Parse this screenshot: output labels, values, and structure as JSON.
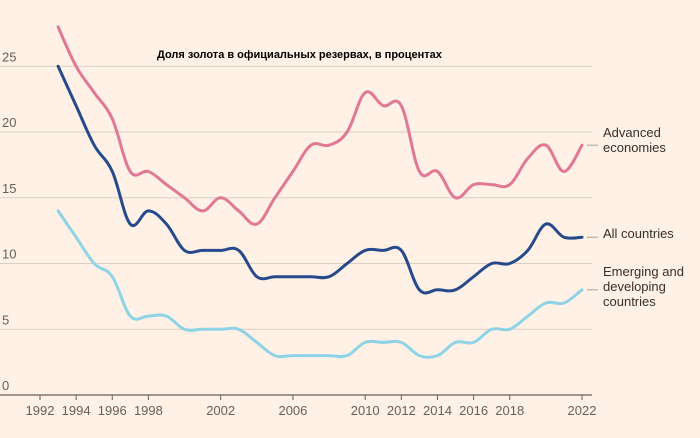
{
  "chart_data": {
    "type": "line",
    "title": "Доля золота в официальных резервах, в процентах",
    "xlabel": "",
    "ylabel": "",
    "xlim": [
      1992,
      2022
    ],
    "ylim": [
      0,
      27
    ],
    "grid": true,
    "legend_placement": "right, at line ends",
    "x_ticks": [
      1992,
      1994,
      1996,
      1998,
      2002,
      2006,
      2010,
      2012,
      2014,
      2016,
      2018,
      2022
    ],
    "x_tick_labels": [
      "1992",
      "1994",
      "1996",
      "1998",
      "2002",
      "2006",
      "2010",
      "2012",
      "2014",
      "2016",
      "2018",
      "2022"
    ],
    "y_ticks": [
      0,
      5,
      10,
      15,
      20,
      25
    ],
    "y_tick_labels": [
      "0",
      "5",
      "10",
      "15",
      "20",
      "25"
    ],
    "series": [
      {
        "name": "Advanced economies",
        "label_lines": [
          "Advanced",
          "economies"
        ],
        "color": "#e07896",
        "x": [
          1993,
          1994,
          1995,
          1996,
          1997,
          1998,
          1999,
          2000,
          2001,
          2002,
          2003,
          2004,
          2005,
          2006,
          2007,
          2008,
          2009,
          2010,
          2011,
          2012,
          2013,
          2014,
          2015,
          2016,
          2017,
          2018,
          2019,
          2020,
          2021,
          2022
        ],
        "values": [
          28,
          25,
          23,
          21,
          17,
          17,
          16,
          15,
          14,
          15,
          14,
          13,
          15,
          17,
          19,
          19,
          20,
          23,
          22,
          22,
          17,
          17,
          15,
          16,
          16,
          16,
          18,
          19,
          17,
          19
        ]
      },
      {
        "name": "All countries",
        "label_lines": [
          "All countries"
        ],
        "color": "#264a8c",
        "x": [
          1993,
          1994,
          1995,
          1996,
          1997,
          1998,
          1999,
          2000,
          2001,
          2002,
          2003,
          2004,
          2005,
          2006,
          2007,
          2008,
          2009,
          2010,
          2011,
          2012,
          2013,
          2014,
          2015,
          2016,
          2017,
          2018,
          2019,
          2020,
          2021,
          2022
        ],
        "values": [
          25,
          22,
          19,
          17,
          13,
          14,
          13,
          11,
          11,
          11,
          11,
          9,
          9,
          9,
          9,
          9,
          10,
          11,
          11,
          11,
          8,
          8,
          8,
          9,
          10,
          10,
          11,
          13,
          12,
          12
        ]
      },
      {
        "name": "Emerging and developing countries",
        "label_lines": [
          "Emerging and",
          "developing",
          "countries"
        ],
        "color": "#8fd3e6",
        "x": [
          1993,
          1994,
          1995,
          1996,
          1997,
          1998,
          1999,
          2000,
          2001,
          2002,
          2003,
          2004,
          2005,
          2006,
          2007,
          2008,
          2009,
          2010,
          2011,
          2012,
          2013,
          2014,
          2015,
          2016,
          2017,
          2018,
          2019,
          2020,
          2021,
          2022
        ],
        "values": [
          14,
          12,
          10,
          9,
          6,
          6,
          6,
          5,
          5,
          5,
          5,
          4,
          3,
          3,
          3,
          3,
          3,
          4,
          4,
          4,
          3,
          3,
          4,
          4,
          5,
          5,
          6,
          7,
          7,
          8
        ]
      }
    ]
  }
}
